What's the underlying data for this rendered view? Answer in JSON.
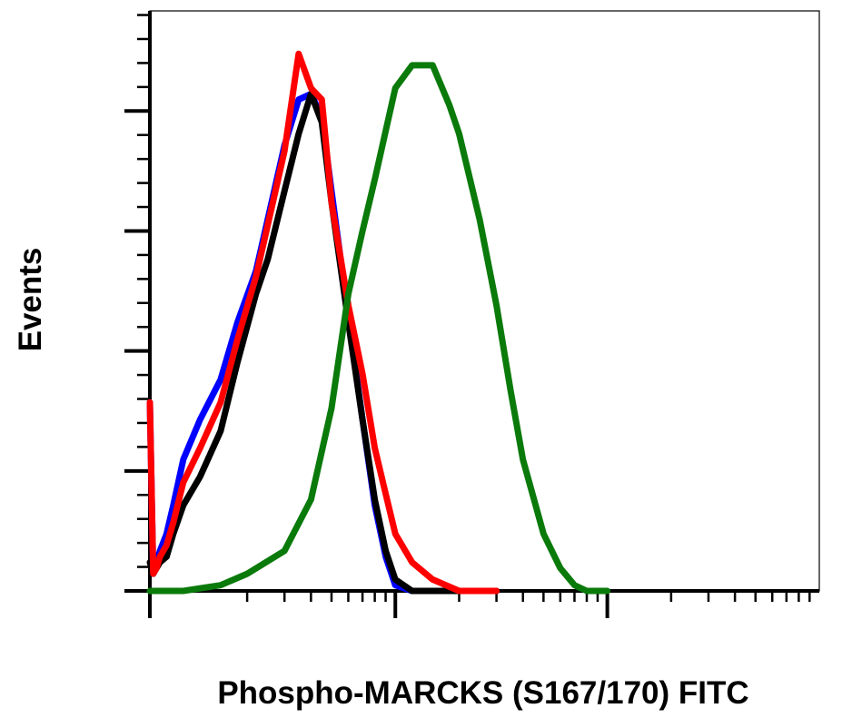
{
  "chart_data": {
    "type": "line",
    "title": "",
    "xlabel": "Phospho-MARCKS (S167/170) FITC",
    "ylabel": "Events",
    "x_scale": "log",
    "xlim": [
      0,
      10000
    ],
    "ylim": [
      0,
      1
    ],
    "grid": false,
    "legend": "none",
    "series": [
      {
        "color": "#0000ff",
        "x": [
          0,
          1,
          2,
          3,
          5,
          7,
          10,
          12,
          15,
          18,
          22,
          25,
          30,
          35,
          40,
          45,
          50,
          60,
          70,
          80,
          90,
          100,
          120,
          150,
          200,
          300
        ],
        "y": [
          0.33,
          0.03,
          0.05,
          0.07,
          0.1,
          0.15,
          0.23,
          0.3,
          0.37,
          0.47,
          0.56,
          0.65,
          0.78,
          0.86,
          0.87,
          0.83,
          0.7,
          0.48,
          0.3,
          0.15,
          0.06,
          0.01,
          0.0,
          0.0,
          0.0,
          0.0
        ]
      },
      {
        "color": "#000000",
        "x": [
          0,
          1,
          2,
          3,
          5,
          7,
          10,
          12,
          15,
          18,
          22,
          25,
          30,
          35,
          40,
          45,
          50,
          60,
          70,
          80,
          90,
          100,
          120,
          150,
          200,
          300
        ],
        "y": [
          0.05,
          0.03,
          0.04,
          0.05,
          0.06,
          0.1,
          0.15,
          0.2,
          0.28,
          0.4,
          0.52,
          0.58,
          0.7,
          0.8,
          0.87,
          0.82,
          0.68,
          0.47,
          0.3,
          0.16,
          0.07,
          0.02,
          0.0,
          0.0,
          0.0,
          0.0
        ]
      },
      {
        "color": "#ff0000",
        "x": [
          0,
          1,
          2,
          3,
          5,
          7,
          10,
          12,
          15,
          18,
          22,
          25,
          30,
          35,
          40,
          45,
          50,
          60,
          70,
          80,
          90,
          100,
          120,
          150,
          200,
          300
        ],
        "y": [
          0.33,
          0.03,
          0.04,
          0.06,
          0.08,
          0.12,
          0.19,
          0.25,
          0.33,
          0.44,
          0.55,
          0.64,
          0.77,
          0.94,
          0.88,
          0.86,
          0.68,
          0.5,
          0.38,
          0.25,
          0.17,
          0.1,
          0.05,
          0.02,
          0.0,
          0.0
        ]
      },
      {
        "color": "#0a7a0a",
        "x": [
          0,
          5,
          10,
          15,
          20,
          30,
          40,
          50,
          60,
          70,
          80,
          100,
          120,
          150,
          180,
          200,
          250,
          300,
          350,
          400,
          500,
          600,
          700,
          800,
          1000
        ],
        "y": [
          0.0,
          0.0,
          0.0,
          0.01,
          0.03,
          0.07,
          0.16,
          0.32,
          0.52,
          0.63,
          0.72,
          0.88,
          0.92,
          0.92,
          0.85,
          0.8,
          0.65,
          0.5,
          0.35,
          0.23,
          0.1,
          0.04,
          0.01,
          0.0,
          0.0
        ]
      }
    ]
  }
}
